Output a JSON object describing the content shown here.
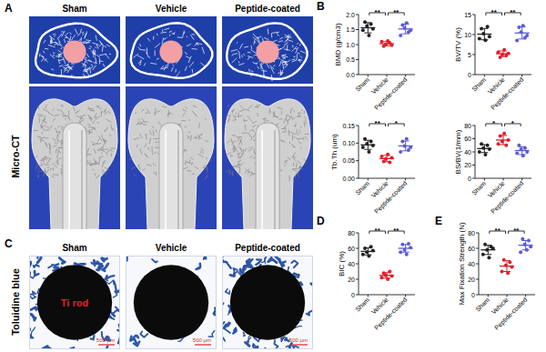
{
  "panel_letters": [
    "A",
    "B",
    "C",
    "D",
    "E"
  ],
  "image_panels": [
    {
      "row_label": "Micro-CT",
      "columns": [
        "Sham",
        "Vehicle",
        "Peptide-coated"
      ]
    },
    {
      "row_label": "Toluidine blue",
      "columns": [
        "Sham",
        "Vehicle",
        "Peptide-coated"
      ],
      "rod_label": "Ti rod",
      "scale_bar": "500 μm"
    }
  ],
  "chart_data": [
    {
      "type": "dot",
      "ylabel": "BMD (g/cm3)",
      "categories": [
        "Sham",
        "Vehicle",
        "Peptide-coated"
      ],
      "colors": [
        "#222222",
        "#e0202a",
        "#5b5bd6"
      ],
      "values": [
        1.56,
        1.03,
        1.52
      ],
      "errors": [
        0.17,
        0.07,
        0.16
      ],
      "points": [
        [
          1.48,
          1.75,
          1.62,
          1.3,
          1.68,
          1.52
        ],
        [
          1.1,
          0.95,
          1.0,
          1.12,
          1.05,
          0.98
        ],
        [
          1.3,
          1.65,
          1.55,
          1.72,
          1.42,
          1.48
        ]
      ],
      "ylim": [
        0,
        2
      ],
      "yticks": [
        {
          "value": 0,
          "label": "0.0"
        },
        0.5,
        {
          "value": 1,
          "label": "1.0"
        },
        1.5,
        {
          "value": 2,
          "label": "2.0"
        }
      ],
      "significance": [
        {
          "pair": [
            "Sham",
            "Vehicle"
          ],
          "label": "**"
        },
        {
          "pair": [
            "Vehicle",
            "Peptide-coated"
          ],
          "label": "**"
        }
      ]
    },
    {
      "type": "dot",
      "ylabel": "BV/TV (%)",
      "categories": [
        "Sham",
        "Vehicle",
        "Peptide-coated"
      ],
      "colors": [
        "#222222",
        "#e0202a",
        "#5b5bd6"
      ],
      "values": [
        10.1,
        5.2,
        10.4
      ],
      "errors": [
        1.4,
        0.7,
        1.5
      ],
      "points": [
        [
          9.0,
          11.5,
          10.2,
          8.6,
          12.0,
          9.5
        ],
        [
          5.6,
          4.3,
          5.0,
          6.2,
          4.8,
          5.3
        ],
        [
          8.5,
          11.8,
          10.6,
          12.2,
          9.2,
          9.8
        ]
      ],
      "ylim": [
        0,
        15
      ],
      "yticks": [
        0,
        5,
        10,
        15
      ],
      "significance": [
        {
          "pair": [
            "Sham",
            "Vehicle"
          ],
          "label": "**"
        },
        {
          "pair": [
            "Vehicle",
            "Peptide-coated"
          ],
          "label": "**"
        }
      ]
    },
    {
      "type": "dot",
      "ylabel": "Tb.Th (um)",
      "categories": [
        "Sham",
        "Vehicle",
        "Peptide-coated"
      ],
      "colors": [
        "#222222",
        "#e0202a",
        "#5b5bd6"
      ],
      "values": [
        0.095,
        0.056,
        0.092
      ],
      "errors": [
        0.013,
        0.009,
        0.014
      ],
      "points": [
        [
          0.088,
          0.112,
          0.098,
          0.075,
          0.105,
          0.093
        ],
        [
          0.062,
          0.048,
          0.055,
          0.068,
          0.045,
          0.058
        ],
        [
          0.075,
          0.105,
          0.092,
          0.112,
          0.08,
          0.088
        ]
      ],
      "ylim": [
        0,
        0.15
      ],
      "yticks": [
        {
          "value": 0,
          "label": "0.00"
        },
        0.05,
        {
          "value": 0.1,
          "label": "0.10"
        },
        0.15
      ],
      "significance": [
        {
          "pair": [
            "Sham",
            "Vehicle"
          ],
          "label": "**"
        },
        {
          "pair": [
            "Vehicle",
            "Peptide-coated"
          ],
          "label": "*"
        }
      ]
    },
    {
      "type": "dot",
      "ylabel": "BS/BV(1/mm)",
      "categories": [
        "Sham",
        "Vehicle",
        "Peptide-coated"
      ],
      "colors": [
        "#222222",
        "#e0202a",
        "#5b5bd6"
      ],
      "values": [
        45,
        58,
        42
      ],
      "errors": [
        6,
        7,
        6
      ],
      "points": [
        [
          40,
          52,
          46,
          36,
          50,
          44
        ],
        [
          52,
          64,
          56,
          68,
          50,
          58
        ],
        [
          38,
          50,
          44,
          34,
          46,
          40
        ]
      ],
      "ylim": [
        0,
        80
      ],
      "yticks": [
        0,
        20,
        40,
        60,
        80
      ],
      "significance": [
        {
          "pair": [
            "Sham",
            "Vehicle"
          ],
          "label": "*"
        },
        {
          "pair": [
            "Vehicle",
            "Peptide-coated"
          ],
          "label": "*"
        }
      ]
    },
    {
      "type": "dot",
      "ylabel": "BIC (%)",
      "categories": [
        "Sham",
        "Vehicle",
        "Peptide-coated"
      ],
      "colors": [
        "#222222",
        "#e0202a",
        "#5b5bd6"
      ],
      "values": [
        56,
        25,
        60
      ],
      "errors": [
        4.5,
        3.5,
        5
      ],
      "points": [
        [
          52,
          60,
          55,
          50,
          62,
          57
        ],
        [
          22,
          28,
          25,
          20,
          30,
          24
        ],
        [
          55,
          65,
          58,
          52,
          66,
          61
        ]
      ],
      "ylim": [
        0,
        80
      ],
      "yticks": [
        0,
        20,
        40,
        60,
        80
      ],
      "significance": [
        {
          "pair": [
            "Sham",
            "Vehicle"
          ],
          "label": "**"
        },
        {
          "pair": [
            "Vehicle",
            "Peptide-coated"
          ],
          "label": "**"
        }
      ]
    },
    {
      "type": "dot",
      "ylabel": "Max Fixation Strength (N)",
      "categories": [
        "Sham",
        "Vehicle",
        "Peptide-coated"
      ],
      "colors": [
        "#222222",
        "#e0202a",
        "#5b5bd6"
      ],
      "values": [
        58,
        37,
        64
      ],
      "errors": [
        6,
        7,
        6
      ],
      "points": [
        [
          52,
          65,
          58,
          48,
          62,
          60
        ],
        [
          30,
          45,
          38,
          28,
          42,
          36
        ],
        [
          55,
          72,
          65,
          58,
          70,
          62
        ]
      ],
      "ylim": [
        0,
        80
      ],
      "yticks": [
        0,
        20,
        40,
        60,
        80
      ],
      "significance": [
        {
          "pair": [
            "Sham",
            "Vehicle"
          ],
          "label": "**"
        },
        {
          "pair": [
            "Vehicle",
            "Peptide-coated"
          ],
          "label": "**"
        }
      ]
    }
  ]
}
